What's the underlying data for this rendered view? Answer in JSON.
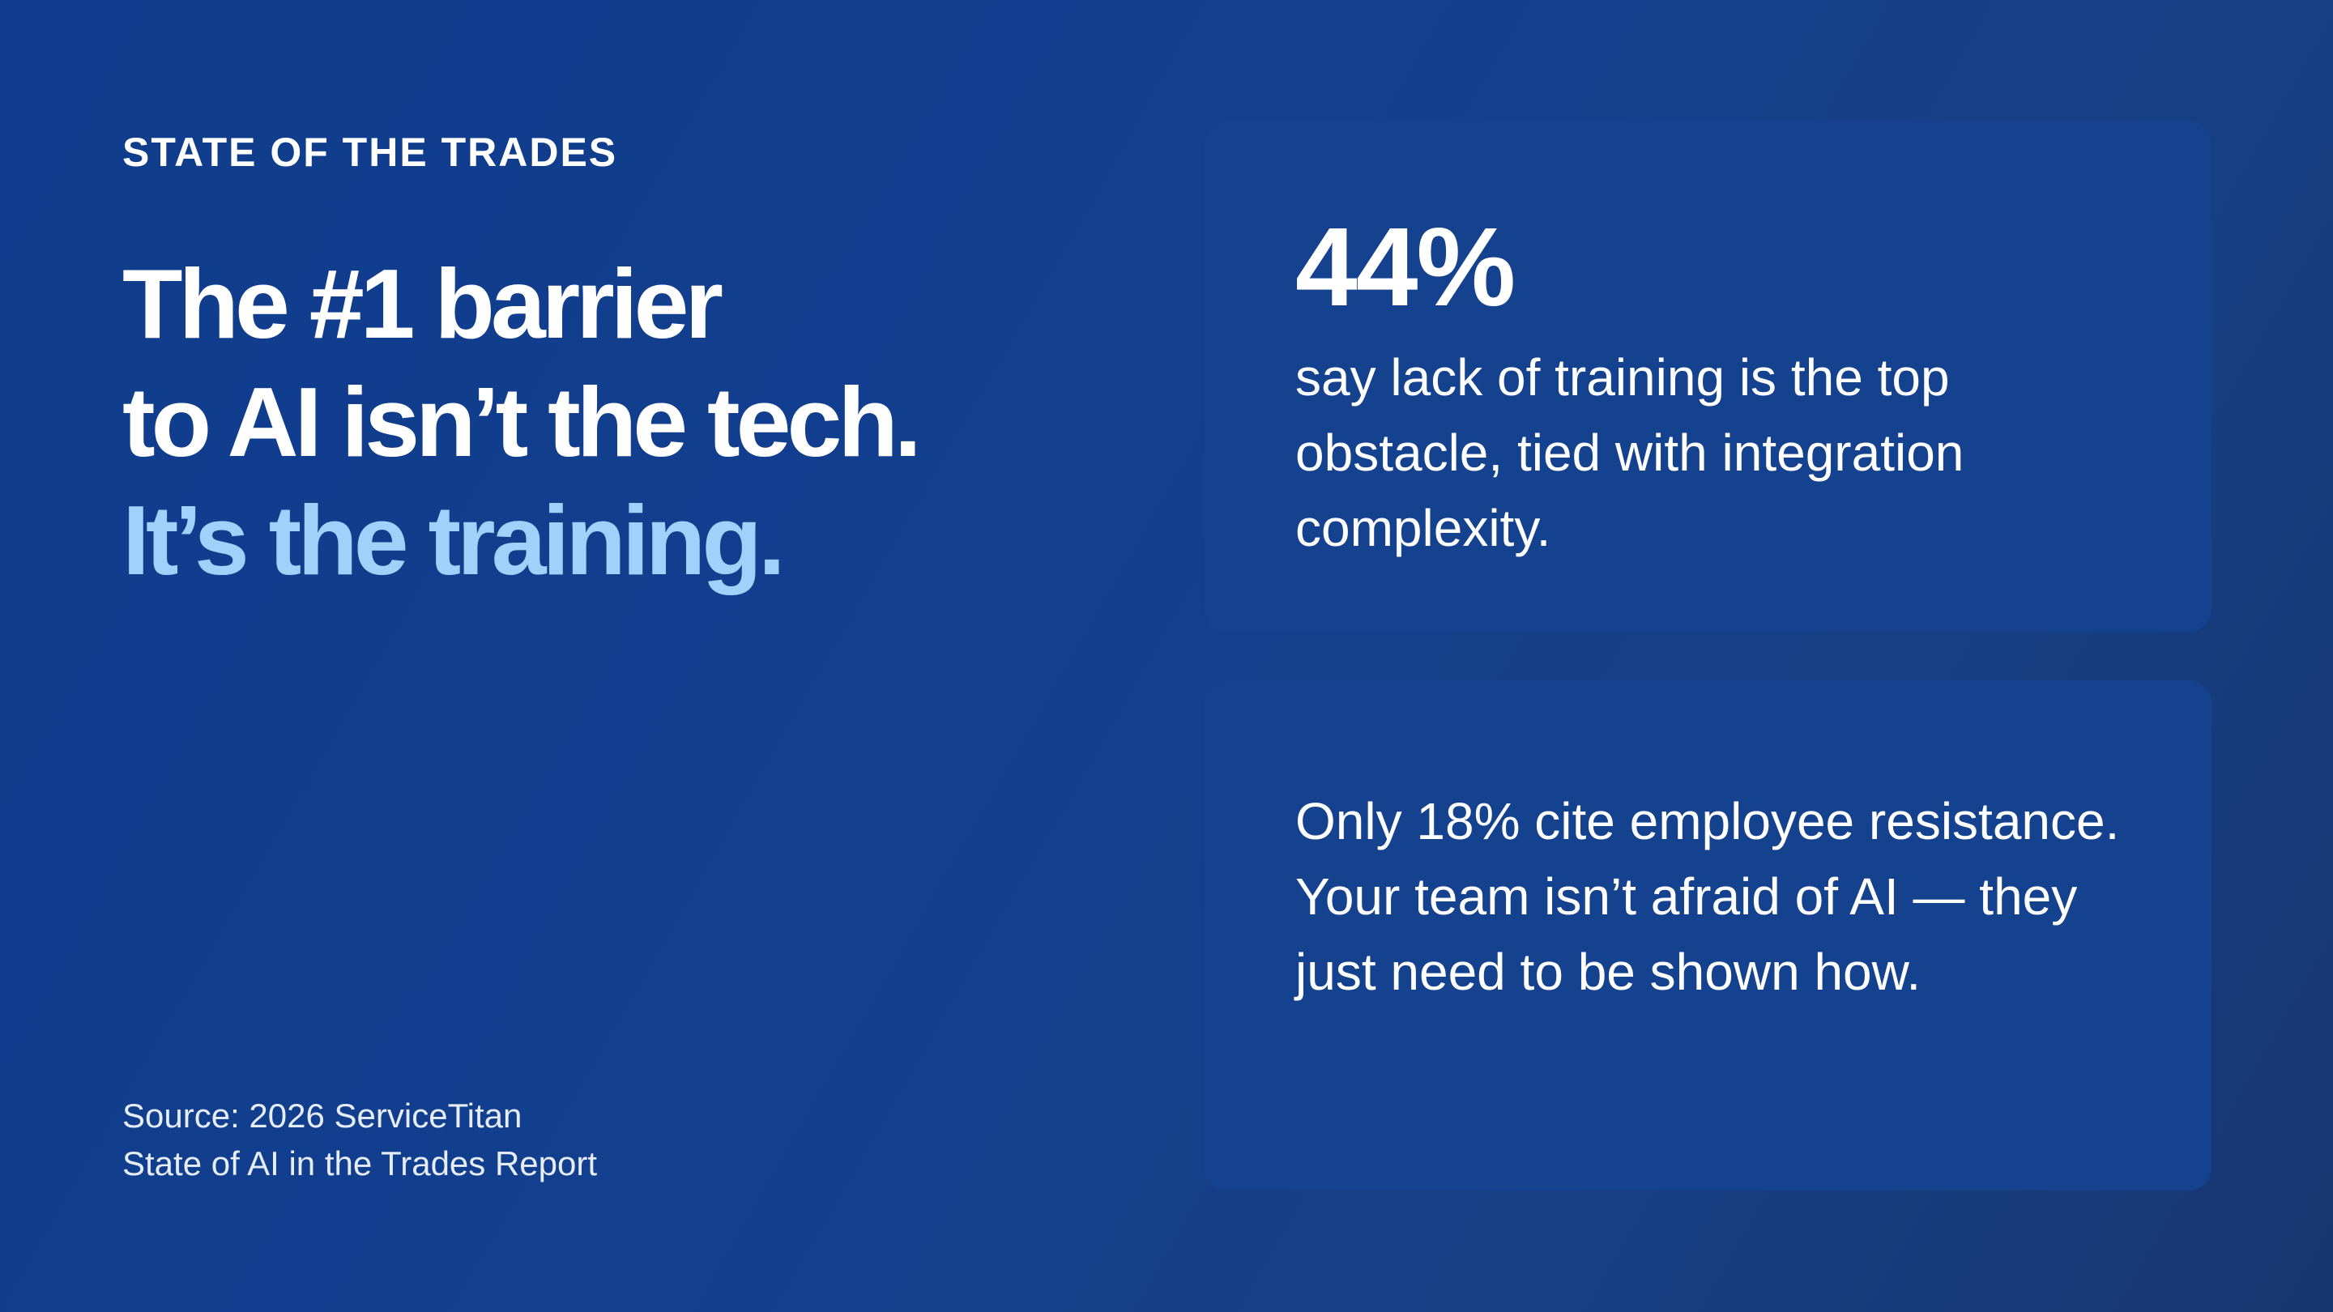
{
  "eyebrow": "STATE OF THE TRADES",
  "headline": {
    "line1": "The #1 barrier",
    "line2": "to AI isn’t the tech.",
    "line3": "It’s the training."
  },
  "source": {
    "line1": "Source: 2026 ServiceTitan",
    "line2": "State of AI in the Trades Report"
  },
  "cards": [
    {
      "stat": "44%",
      "text": "say lack of training is the top obstacle, tied with integration complexity."
    },
    {
      "text": "Only 18% cite employee resistance. Your team isn’t afraid of AI — they just need to be shown how."
    }
  ],
  "colors": {
    "background": "#123f8e",
    "card": "#15428f",
    "accent": "#9fd1fa",
    "text": "#ffffff"
  }
}
